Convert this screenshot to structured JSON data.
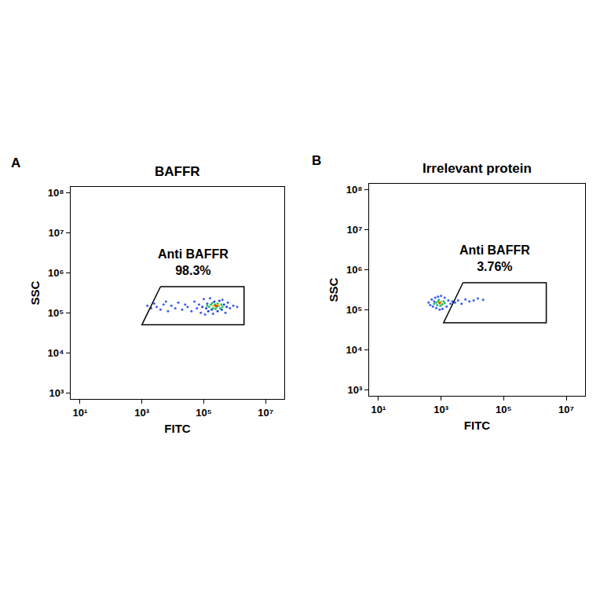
{
  "chart_data": [
    {
      "type": "scatter",
      "panel": "A",
      "title": "BAFFR",
      "x_label": "FITC",
      "y_label": "SSC",
      "log": true,
      "xlim": [
        5,
        40000000
      ],
      "ylim": [
        700,
        140000000
      ],
      "xticks": [
        {
          "value": 10,
          "label": "10¹"
        },
        {
          "value": 1000,
          "label": "10³"
        },
        {
          "value": 100000,
          "label": "10⁵"
        },
        {
          "value": 10000000,
          "label": "10⁷"
        }
      ],
      "yticks": [
        {
          "value": 1000,
          "label": "10³"
        },
        {
          "value": 10000,
          "label": "10⁴"
        },
        {
          "value": 100000,
          "label": "10⁵"
        },
        {
          "value": 1000000,
          "label": "10⁶"
        },
        {
          "value": 10000000,
          "label": "10⁷"
        },
        {
          "value": 100000000,
          "label": "10⁸"
        }
      ],
      "series": [
        {
          "color": "#3a5cf0",
          "points": [
            [
              1500,
              150000
            ],
            [
              2000,
              130000
            ],
            [
              2500,
              170000
            ],
            [
              3000,
              140000
            ],
            [
              4000,
              120000
            ],
            [
              5000,
              160000
            ],
            [
              6000,
              190000
            ],
            [
              7000,
              110000
            ],
            [
              9000,
              150000
            ],
            [
              12000,
              130000
            ],
            [
              15000,
              180000
            ],
            [
              20000,
              120000
            ],
            [
              25000,
              160000
            ],
            [
              30000,
              140000
            ],
            [
              40000,
              110000
            ],
            [
              50000,
              190000
            ],
            [
              60000,
              130000
            ],
            [
              70000,
              160000
            ],
            [
              80000,
              100000
            ],
            [
              100000,
              220000
            ],
            [
              110000,
              90000
            ],
            [
              130000,
              170000
            ],
            [
              160000,
              230000
            ],
            [
              200000,
              95000
            ],
            [
              400000,
              210000
            ],
            [
              500000,
              100000
            ],
            [
              600000,
              180000
            ],
            [
              700000,
              130000
            ],
            [
              900000,
              150000
            ],
            [
              1200000,
              140000
            ]
          ]
        },
        {
          "color": "#1f3fd0",
          "points": [
            [
              90000,
              140000
            ],
            [
              120000,
              130000
            ],
            [
              140000,
              110000
            ],
            [
              180000,
              120000
            ],
            [
              220000,
              190000
            ],
            [
              280000,
              110000
            ],
            [
              320000,
              200000
            ],
            [
              380000,
              120000
            ],
            [
              450000,
              160000
            ],
            [
              550000,
              140000
            ]
          ]
        },
        {
          "color": "#22c06a",
          "points": [
            [
              130000,
              150000
            ],
            [
              150000,
              140000
            ],
            [
              170000,
              160000
            ],
            [
              200000,
              130000
            ],
            [
              230000,
              160000
            ],
            [
              260000,
              140000
            ],
            [
              300000,
              150000
            ],
            [
              340000,
              130000
            ],
            [
              370000,
              160000
            ],
            [
              400000,
              140000
            ],
            [
              190000,
              175000
            ],
            [
              280000,
              170000
            ],
            [
              240000,
              125000
            ]
          ]
        },
        {
          "color": "#e6e020",
          "points": [
            [
              200000,
              150000
            ],
            [
              240000,
              145000
            ],
            [
              290000,
              155000
            ],
            [
              260000,
              150000
            ]
          ]
        },
        {
          "color": "#f03a1e",
          "points": [
            [
              240000,
              150000
            ],
            [
              270000,
              148000
            ]
          ]
        }
      ],
      "gate": {
        "label": "Anti BAFFR",
        "value": 98.3,
        "value_label": "98.3%",
        "x": [
          4000,
          2000000,
          2000000,
          1000,
          4000
        ],
        "y": [
          450000,
          450000,
          50000,
          50000,
          450000
        ]
      }
    },
    {
      "type": "scatter",
      "panel": "B",
      "title": "Irrelevant protein",
      "x_label": "FITC",
      "y_label": "SSC",
      "log": true,
      "xlim": [
        5,
        40000000
      ],
      "ylim": [
        700,
        140000000
      ],
      "xticks": [
        {
          "value": 10,
          "label": "10¹"
        },
        {
          "value": 1000,
          "label": "10³"
        },
        {
          "value": 100000,
          "label": "10⁵"
        },
        {
          "value": 10000000,
          "label": "10⁷"
        }
      ],
      "yticks": [
        {
          "value": 1000,
          "label": "10³"
        },
        {
          "value": 10000,
          "label": "10⁴"
        },
        {
          "value": 100000,
          "label": "10⁵"
        },
        {
          "value": 1000000,
          "label": "10⁶"
        },
        {
          "value": 10000000,
          "label": "10⁷"
        },
        {
          "value": 100000000,
          "label": "10⁸"
        }
      ],
      "series": [
        {
          "color": "#3a5cf0",
          "points": [
            [
              400,
              150000
            ],
            [
              450,
              130000
            ],
            [
              500,
              180000
            ],
            [
              550,
              120000
            ],
            [
              600,
              160000
            ],
            [
              650,
              200000
            ],
            [
              700,
              110000
            ],
            [
              800,
              210000
            ],
            [
              900,
              100000
            ],
            [
              1000,
              220000
            ],
            [
              1100,
              105000
            ],
            [
              1300,
              200000
            ],
            [
              1500,
              120000
            ],
            [
              1700,
              170000
            ],
            [
              2000,
              140000
            ],
            [
              2300,
              160000
            ],
            [
              2800,
              150000
            ],
            [
              3500,
              170000
            ],
            [
              4500,
              140000
            ],
            [
              6000,
              180000
            ],
            [
              8000,
              160000
            ],
            [
              11000,
              170000
            ],
            [
              15000,
              190000
            ],
            [
              22000,
              175000
            ]
          ]
        },
        {
          "color": "#22c06a",
          "points": [
            [
              600,
              140000
            ],
            [
              700,
              150000
            ],
            [
              750,
              130000
            ],
            [
              800,
              160000
            ],
            [
              900,
              145000
            ],
            [
              1000,
              155000
            ],
            [
              1100,
              135000
            ],
            [
              1200,
              160000
            ],
            [
              850,
              175000
            ],
            [
              950,
              125000
            ],
            [
              1300,
              145000
            ]
          ]
        },
        {
          "color": "#e6e020",
          "points": [
            [
              850,
              150000
            ],
            [
              950,
              145000
            ],
            [
              1000,
              152000
            ]
          ]
        },
        {
          "color": "#f03a1e",
          "points": [
            [
              900,
              148000
            ]
          ]
        }
      ],
      "gate": {
        "label": "Anti BAFFR",
        "value": 3.76,
        "value_label": "3.76%",
        "x": [
          5000,
          2300000,
          2300000,
          1200,
          5000
        ],
        "y": [
          470000,
          470000,
          47000,
          47000,
          470000
        ]
      }
    }
  ]
}
